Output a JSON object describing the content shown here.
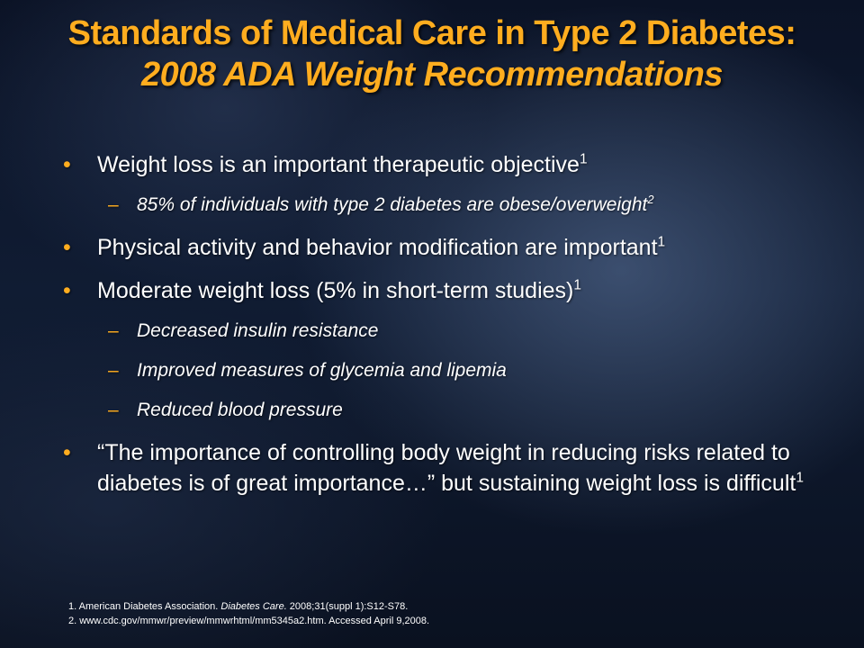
{
  "title": {
    "line1": "Standards of Medical Care in Type 2 Diabetes:",
    "line2": "2008 ADA Weight Recommendations"
  },
  "bullet_symbol": "•",
  "dash_symbol": "–",
  "bullets": [
    {
      "text": "Weight loss is an important therapeutic objective",
      "sup": "1"
    },
    {
      "text": "85% of individuals with type 2 diabetes are obese/overweight",
      "sup": "2"
    },
    {
      "text": "Physical activity and behavior modification are important",
      "sup": "1"
    },
    {
      "text": "Moderate weight loss (5% in short-term studies)",
      "sup": "1"
    },
    {
      "text": "Decreased insulin resistance"
    },
    {
      "text": "Improved measures of glycemia and lipemia"
    },
    {
      "text": "Reduced blood pressure"
    },
    {
      "text": "“The importance of controlling body weight in reducing risks related to diabetes is of great importance…” but sustaining weight loss is difficult",
      "sup": "1"
    }
  ],
  "references": {
    "ref1_prefix": "1. American Diabetes Association. ",
    "ref1_journal": "Diabetes Care.",
    "ref1_suffix": " 2008;31(suppl 1):S12-S78.",
    "ref2": "2. www.cdc.gov/mmwr/preview/mmwrhtml/mm5345a2.htm. Accessed April 9,2008."
  }
}
